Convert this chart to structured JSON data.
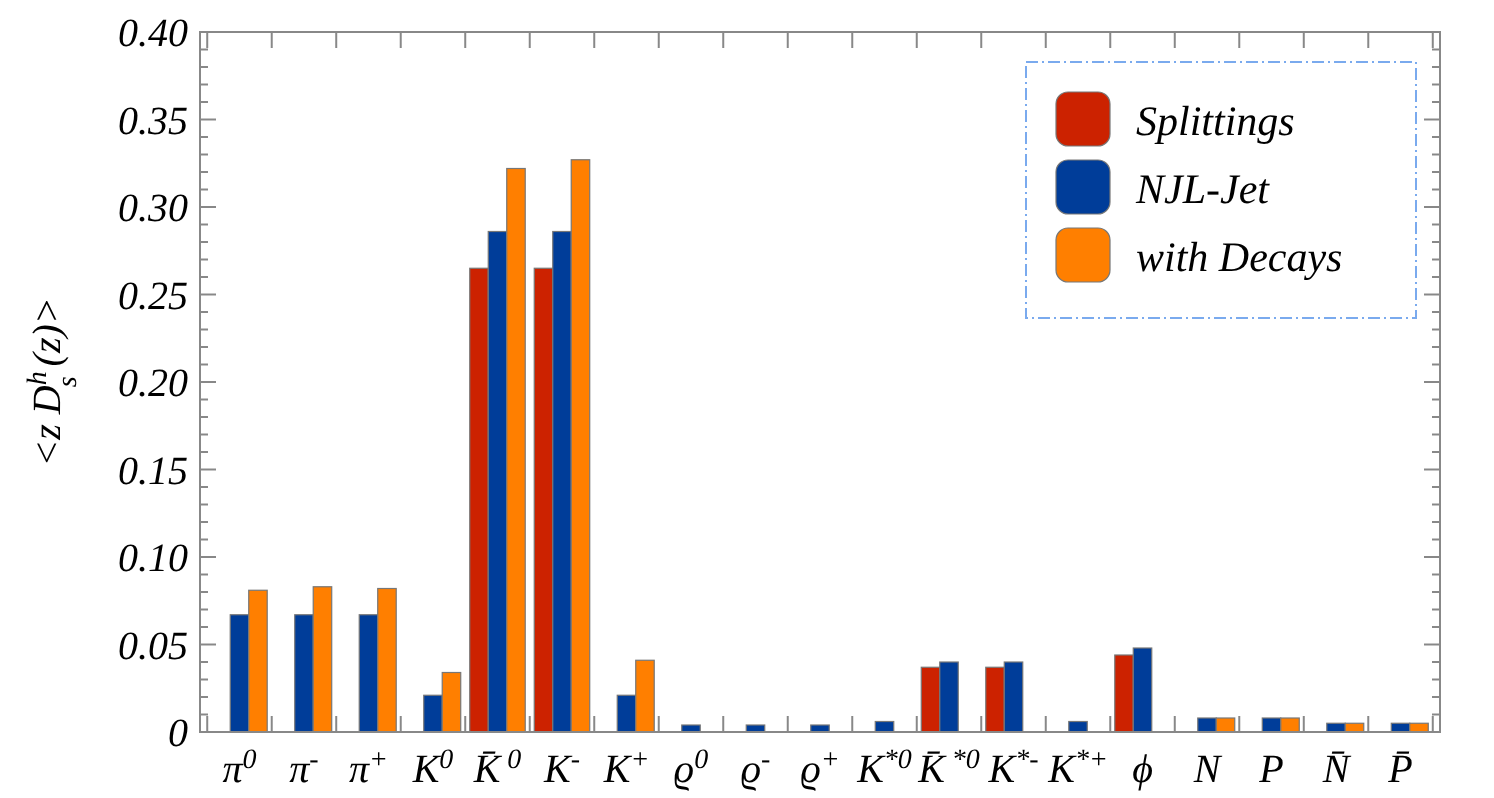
{
  "chart_data": {
    "type": "bar",
    "ylabel": "<z D$^{h}$$_{s}$ (z)>",
    "categories": [
      "π$^{0}$",
      "π$^{-}$",
      "π$^{+}$",
      "K$^{0}$",
      "K̄$^{ 0}$",
      "K$^{-}$",
      "K$^{+}$",
      "ϱ$^{0}$",
      "ϱ$^{-}$",
      "ϱ$^{+}$",
      "K$^{*0}$",
      "K̄$^{ *0}$",
      "K$^{*-}$",
      "K$^{*+}$",
      "ϕ",
      "N",
      "P",
      "N̄",
      "P̄"
    ],
    "series": [
      {
        "name": "Splittings",
        "color": "#cc2200",
        "values": [
          null,
          null,
          null,
          null,
          0.265,
          0.265,
          null,
          null,
          null,
          null,
          null,
          0.037,
          0.037,
          null,
          0.044,
          null,
          null,
          null,
          null
        ]
      },
      {
        "name": "NJL-Jet",
        "color": "#003d99",
        "values": [
          0.067,
          0.067,
          0.067,
          0.021,
          0.286,
          0.286,
          0.021,
          0.004,
          0.004,
          0.004,
          0.006,
          0.04,
          0.04,
          0.006,
          0.048,
          0.008,
          0.008,
          0.005,
          0.005
        ]
      },
      {
        "name": "with Decays",
        "color": "#ff7f00",
        "values": [
          0.081,
          0.083,
          0.082,
          0.034,
          0.322,
          0.327,
          0.041,
          null,
          null,
          null,
          null,
          null,
          null,
          null,
          null,
          0.008,
          0.008,
          0.005,
          0.005
        ]
      }
    ],
    "ylim": [
      0,
      0.4
    ],
    "yticks": [
      {
        "value": 0,
        "label": "0"
      },
      {
        "value": 0.01,
        "label": null
      },
      {
        "value": 0.02,
        "label": null
      },
      {
        "value": 0.03,
        "label": null
      },
      {
        "value": 0.04,
        "label": null
      },
      {
        "value": 0.05,
        "label": "0.05"
      },
      {
        "value": 0.06,
        "label": null
      },
      {
        "value": 0.07,
        "label": null
      },
      {
        "value": 0.08,
        "label": null
      },
      {
        "value": 0.09,
        "label": null
      },
      {
        "value": 0.1,
        "label": "0.10"
      },
      {
        "value": 0.11,
        "label": null
      },
      {
        "value": 0.12,
        "label": null
      },
      {
        "value": 0.13,
        "label": null
      },
      {
        "value": 0.14,
        "label": null
      },
      {
        "value": 0.15,
        "label": "0.15"
      },
      {
        "value": 0.16,
        "label": null
      },
      {
        "value": 0.17,
        "label": null
      },
      {
        "value": 0.18,
        "label": null
      },
      {
        "value": 0.19,
        "label": null
      },
      {
        "value": 0.2,
        "label": "0.20"
      },
      {
        "value": 0.21,
        "label": null
      },
      {
        "value": 0.22,
        "label": null
      },
      {
        "value": 0.23,
        "label": null
      },
      {
        "value": 0.24,
        "label": null
      },
      {
        "value": 0.25,
        "label": "0.25"
      },
      {
        "value": 0.26,
        "label": null
      },
      {
        "value": 0.27,
        "label": null
      },
      {
        "value": 0.28,
        "label": null
      },
      {
        "value": 0.29,
        "label": null
      },
      {
        "value": 0.3,
        "label": "0.30"
      },
      {
        "value": 0.31,
        "label": null
      },
      {
        "value": 0.32,
        "label": null
      },
      {
        "value": 0.33,
        "label": null
      },
      {
        "value": 0.34,
        "label": null
      },
      {
        "value": 0.35,
        "label": "0.35"
      },
      {
        "value": 0.36,
        "label": null
      },
      {
        "value": 0.37,
        "label": null
      },
      {
        "value": 0.38,
        "label": null
      },
      {
        "value": 0.39,
        "label": null
      },
      {
        "value": 0.4,
        "label": "0.40"
      }
    ],
    "grid": false,
    "legend": "top right"
  }
}
